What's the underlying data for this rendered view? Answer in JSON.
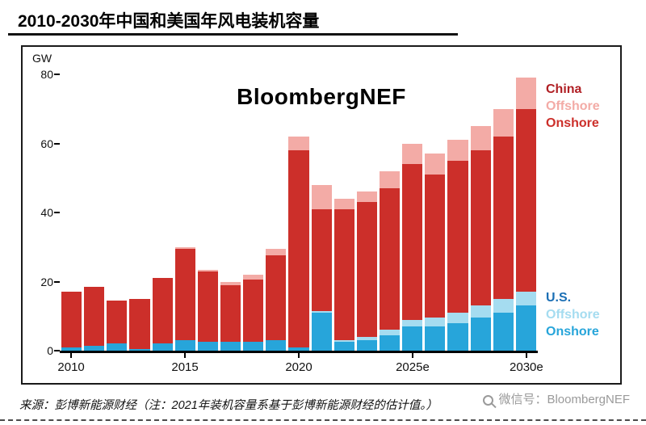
{
  "title": "2010-2030年中国和美国年风电装机容量",
  "chart": {
    "unit_label": "GW",
    "watermark": "BloombergNEF",
    "legend": {
      "china": {
        "title": "China",
        "offshore": "Offshore",
        "onshore": "Onshore"
      },
      "us": {
        "title": "U.S.",
        "offshore": "Offshore",
        "onshore": "Onshore"
      }
    }
  },
  "colors": {
    "china_title": "#b01f24",
    "china_offshore": "#f3aba6",
    "china_onshore": "#cc2f2a",
    "us_title": "#1b6fb5",
    "us_offshore": "#a5dcf0",
    "us_onshore": "#27a5da",
    "axis": "#000000"
  },
  "footer": {
    "source": "来源：彭博新能源财经（注：2021年装机容量系基于彭博新能源财经的估计值。）",
    "wechat": "微信号：BloombergNEF"
  },
  "chart_data": {
    "type": "bar",
    "stacked": true,
    "title": "2010-2030年中国和美国年风电装机容量",
    "ylabel": "GW",
    "ylim": [
      0,
      80
    ],
    "grid": false,
    "legend_position": "right",
    "y_ticks": [
      0,
      20,
      40,
      60,
      80
    ],
    "x_tick_labels": [
      "2010",
      "2015",
      "2020",
      "2025e",
      "2030e"
    ],
    "categories": [
      2010,
      2011,
      2012,
      2013,
      2014,
      2015,
      2016,
      2017,
      2018,
      2019,
      2020,
      2021,
      2022,
      2023,
      2024,
      2025,
      2026,
      2027,
      2028,
      2029,
      2030
    ],
    "series": [
      {
        "name": "U.S. Onshore",
        "color": "#27a5da",
        "values": [
          1,
          1.5,
          2,
          0.5,
          2,
          3,
          2.5,
          2.5,
          2.5,
          3,
          1,
          11,
          2.5,
          3,
          4.5,
          7,
          7,
          8,
          9.5,
          11,
          13
        ]
      },
      {
        "name": "U.S. Offshore",
        "color": "#a5dcf0",
        "values": [
          0,
          0,
          0,
          0,
          0,
          0,
          0,
          0,
          0,
          0,
          0,
          0.5,
          0.5,
          1,
          1.5,
          2,
          2.5,
          3,
          3.5,
          4,
          4
        ]
      },
      {
        "name": "China Onshore",
        "color": "#cc2f2a",
        "values": [
          16,
          17,
          12.5,
          14.5,
          19,
          26.5,
          20.5,
          16.5,
          18,
          24.5,
          57,
          29.5,
          38,
          39,
          41,
          45,
          41.5,
          44,
          45,
          47,
          53
        ]
      },
      {
        "name": "China Offshore",
        "color": "#f3aba6",
        "values": [
          0,
          0,
          0,
          0,
          0,
          0.5,
          0.5,
          1,
          1.5,
          2,
          4,
          7,
          3,
          3,
          5,
          6,
          6,
          6,
          7,
          8,
          9
        ]
      }
    ]
  }
}
